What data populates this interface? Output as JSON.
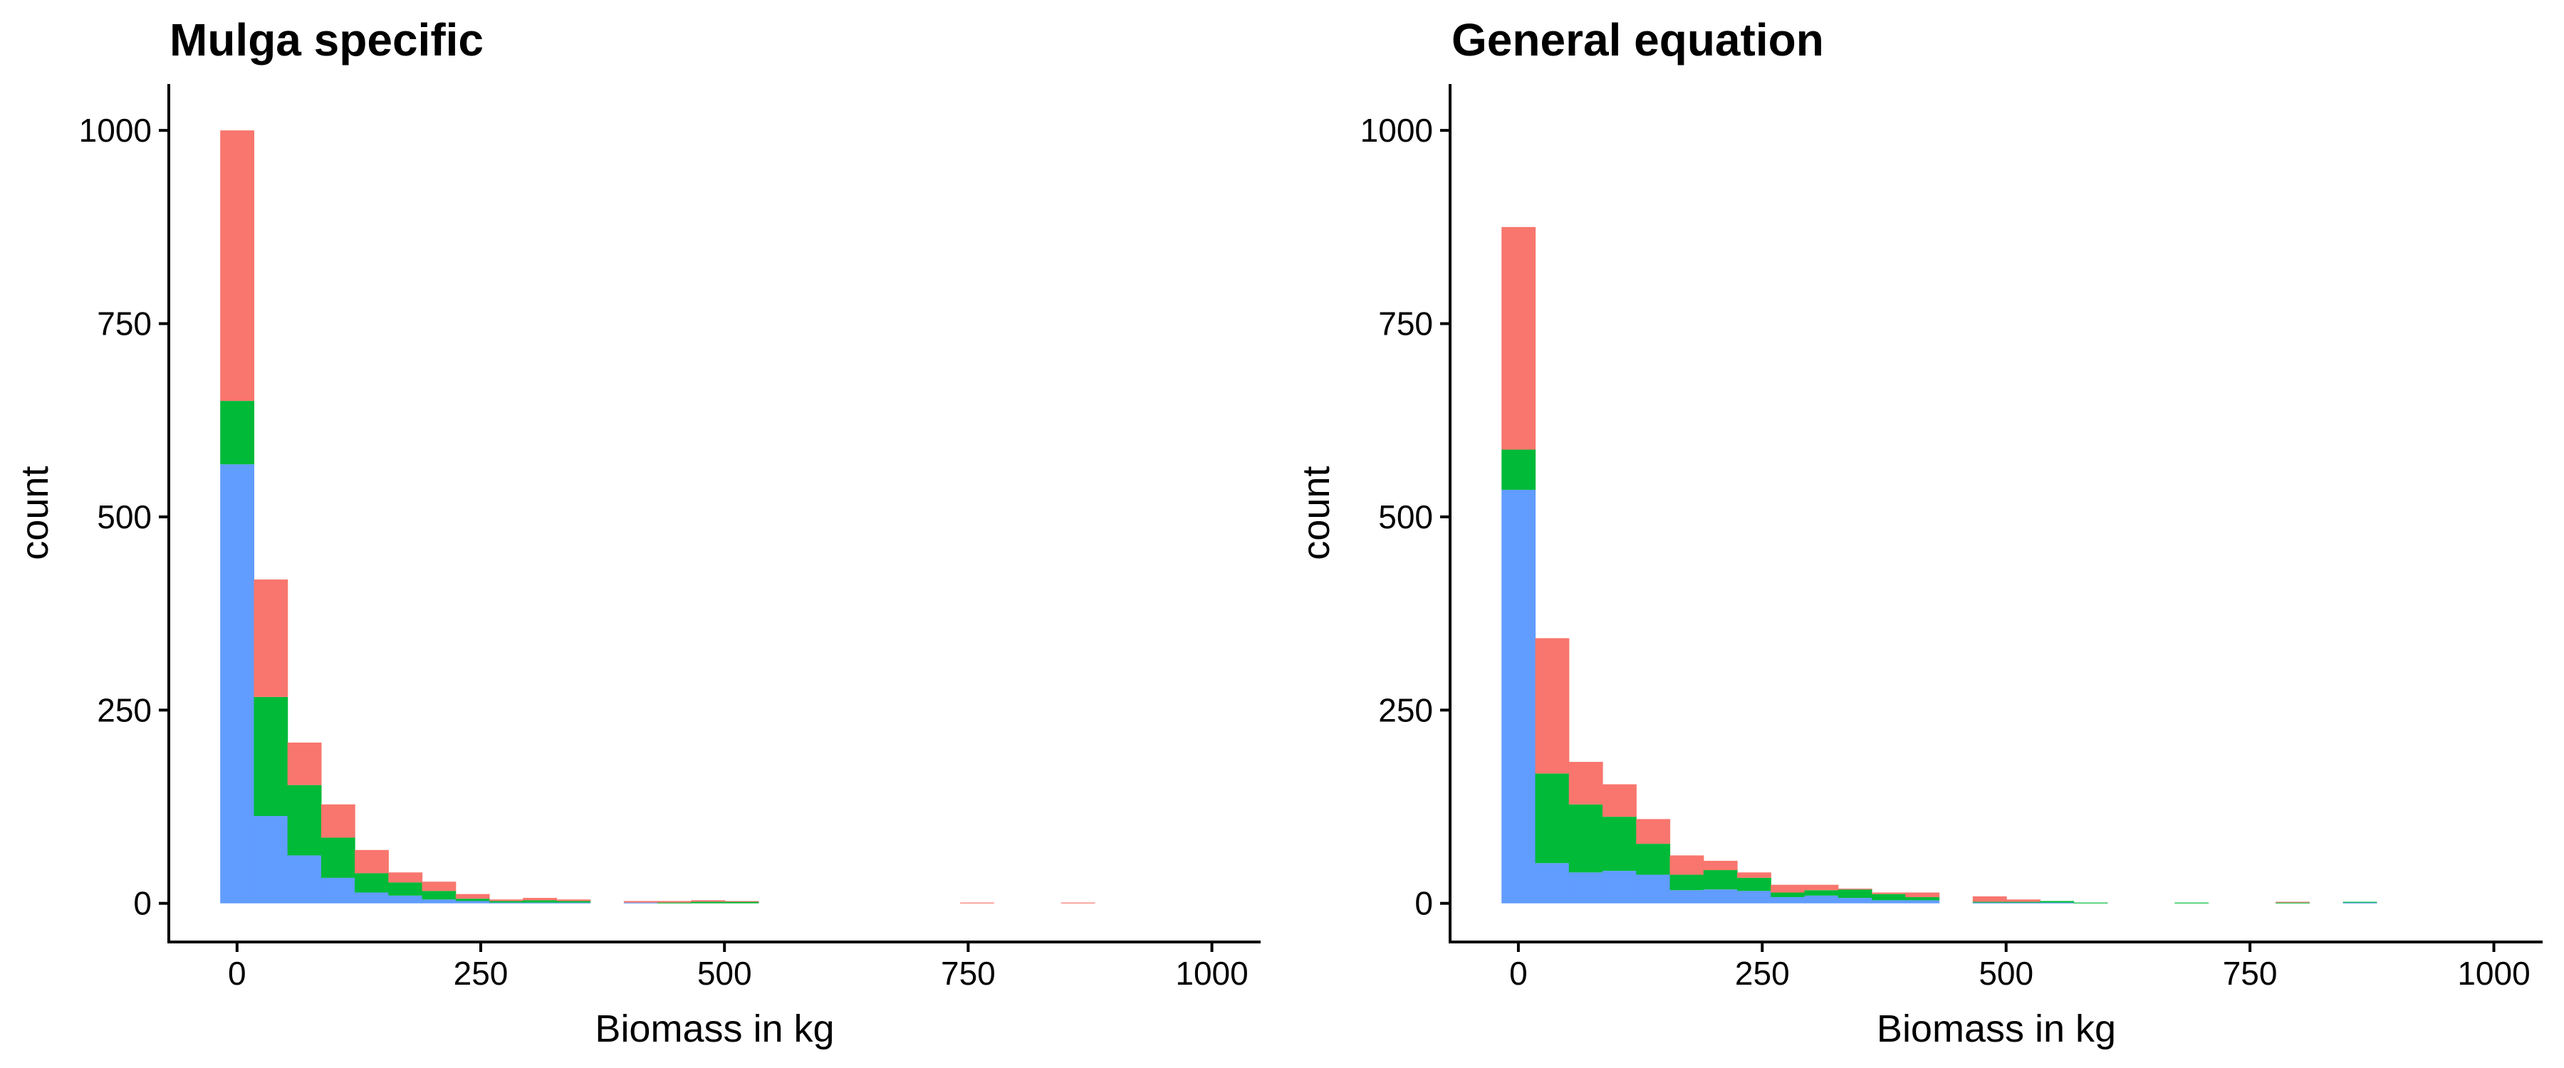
{
  "colors": {
    "series_1": "#F8766D",
    "series_2": "#00BA38",
    "series_3": "#619CFF"
  },
  "chart_data": [
    {
      "type": "bar",
      "stacked": true,
      "title": "Mulga specific",
      "xlabel": "Biomass in kg",
      "ylabel": "count",
      "xlim": [
        -70,
        1050
      ],
      "ylim": [
        -50,
        1060
      ],
      "xticks": [
        0,
        250,
        500,
        750,
        1000
      ],
      "yticks": [
        0,
        250,
        500,
        750,
        1000
      ],
      "bin_width": 34.5,
      "bin_starts": [
        -17.25,
        17.25,
        51.75,
        86.25,
        120.75,
        155.25,
        189.75,
        224.25,
        258.75,
        293.25,
        327.75,
        362.25,
        396.75,
        431.25,
        465.75,
        500.25,
        741.75,
        845.25
      ],
      "series": [
        {
          "color_key": "series_3",
          "values": [
            568,
            113,
            62,
            33,
            14,
            10,
            5,
            3,
            1,
            1,
            1,
            0,
            1,
            0,
            0,
            0,
            0,
            0
          ]
        },
        {
          "color_key": "series_2",
          "values": [
            82,
            154,
            91,
            52,
            25,
            17,
            11,
            3,
            2,
            3,
            2,
            0,
            0,
            1,
            2,
            2,
            0,
            0
          ]
        },
        {
          "color_key": "series_1",
          "values": [
            350,
            152,
            55,
            43,
            30,
            13,
            12,
            6,
            2,
            3,
            2,
            0,
            2,
            2,
            2,
            1,
            1,
            1
          ]
        }
      ],
      "legend": "none",
      "grid": false
    },
    {
      "type": "bar",
      "stacked": true,
      "title": "General equation",
      "xlabel": "Biomass in kg",
      "ylabel": "count",
      "xlim": [
        -70,
        1050
      ],
      "ylim": [
        -50,
        1060
      ],
      "xticks": [
        0,
        250,
        500,
        750,
        1000
      ],
      "yticks": [
        0,
        250,
        500,
        750,
        1000
      ],
      "bin_width": 34.5,
      "bin_starts": [
        -17.25,
        17.25,
        51.75,
        86.25,
        120.75,
        155.25,
        189.75,
        224.25,
        258.75,
        293.25,
        327.75,
        362.25,
        396.75,
        465.75,
        500.25,
        534.75,
        569.25,
        672.75,
        776.25,
        845.25
      ],
      "series": [
        {
          "color_key": "series_3",
          "values": [
            535,
            52,
            40,
            42,
            37,
            17,
            18,
            16,
            8,
            10,
            7,
            4,
            4,
            1,
            1,
            1,
            0,
            0,
            0,
            1
          ]
        },
        {
          "color_key": "series_2",
          "values": [
            52,
            116,
            88,
            70,
            40,
            20,
            25,
            17,
            6,
            7,
            11,
            8,
            4,
            1,
            1,
            2,
            1,
            1,
            1,
            1
          ]
        },
        {
          "color_key": "series_1",
          "values": [
            288,
            175,
            55,
            42,
            32,
            25,
            12,
            7,
            10,
            7,
            1,
            2,
            6,
            7,
            3,
            0,
            0,
            0,
            1,
            0
          ]
        }
      ],
      "legend": "none",
      "grid": false
    }
  ]
}
